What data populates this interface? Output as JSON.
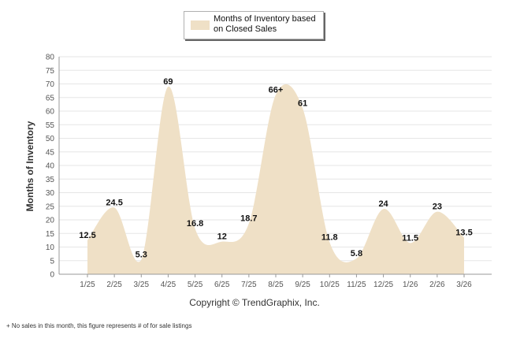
{
  "legend": {
    "line1": "Months of Inventory based",
    "line2": "on Closed Sales"
  },
  "copyright": "Copyright © TrendGraphix, Inc.",
  "footnote": "+  No sales in this month, this figure represents # of for sale listings",
  "colors": {
    "fill": "#efe0c6",
    "grid": "#e6e6e6",
    "axis": "#999999"
  },
  "chart_data": {
    "type": "area",
    "title": "",
    "xlabel": "",
    "ylabel": "Months of Inventory",
    "ylim": [
      0,
      80
    ],
    "yticks": [
      0,
      5,
      10,
      15,
      20,
      25,
      30,
      35,
      40,
      45,
      50,
      55,
      60,
      65,
      70,
      75,
      80
    ],
    "categories": [
      "1/25",
      "2/25",
      "3/25",
      "4/25",
      "5/25",
      "6/25",
      "7/25",
      "8/25",
      "9/25",
      "10/25",
      "11/25",
      "12/25",
      "1/26",
      "2/26",
      "3/26"
    ],
    "values": [
      12.5,
      24.5,
      5.3,
      69,
      16.8,
      12,
      18.7,
      66,
      61,
      11.8,
      5.8,
      24,
      11.5,
      23,
      13.5
    ],
    "labels": [
      "12.5",
      "24.5",
      "5.3",
      "69",
      "16.8",
      "12",
      "18.7",
      "66+",
      "61",
      "11.8",
      "5.8",
      "24",
      "11.5",
      "23",
      "13.5"
    ]
  }
}
